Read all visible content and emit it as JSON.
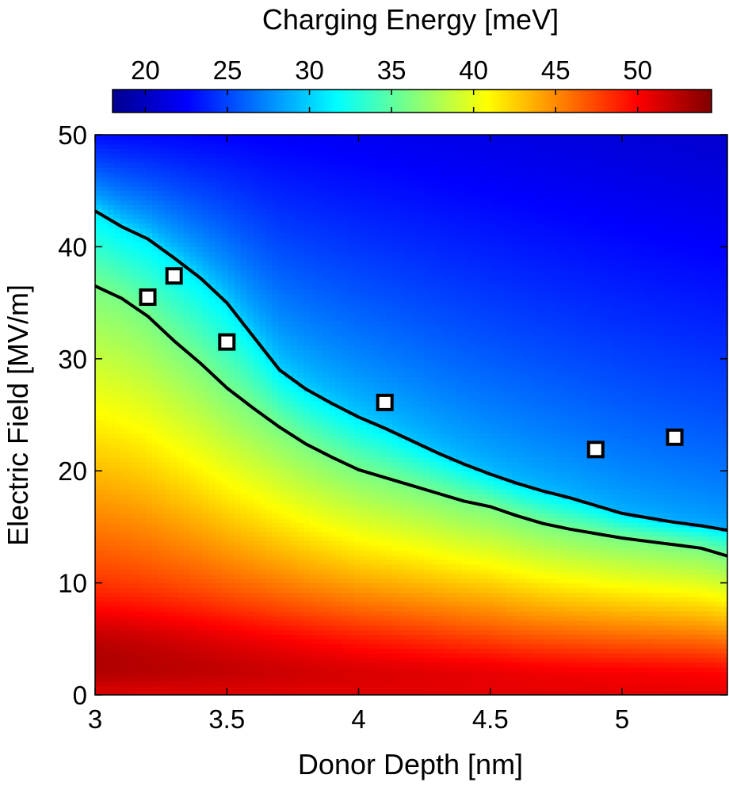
{
  "chart_data": {
    "type": "heatmap",
    "title": "",
    "xlabel": "Donor Depth [nm]",
    "ylabel": "Electric Field [MV/m]",
    "xlim": [
      3,
      5.4
    ],
    "ylim": [
      0,
      50
    ],
    "x_ticks": [
      3,
      3.5,
      4,
      4.5,
      5
    ],
    "x_tick_labels": [
      "3",
      "3.5",
      "4",
      "4.5",
      "5"
    ],
    "y_ticks": [
      0,
      10,
      20,
      30,
      40,
      50
    ],
    "y_tick_labels": [
      "0",
      "10",
      "20",
      "30",
      "40",
      "50"
    ],
    "colorbar": {
      "label": "Charging Energy [meV]",
      "range": [
        18,
        54.5
      ],
      "ticks": [
        20,
        25,
        30,
        35,
        40,
        45,
        50
      ],
      "tick_labels": [
        "20",
        "25",
        "30",
        "35",
        "40",
        "45",
        "50"
      ],
      "colormap": "jet",
      "placement": "top"
    },
    "contours": [
      {
        "level_description": "upper boundary",
        "x": [
          3.0,
          3.1,
          3.2,
          3.3,
          3.4,
          3.5,
          3.6,
          3.7,
          3.8,
          3.9,
          4.0,
          4.1,
          4.2,
          4.3,
          4.4,
          4.5,
          4.6,
          4.7,
          4.8,
          4.9,
          5.0,
          5.1,
          5.2,
          5.3,
          5.4
        ],
        "y": [
          43.2,
          41.8,
          40.7,
          39.0,
          37.2,
          35.0,
          32.0,
          29.0,
          27.3,
          26.0,
          24.8,
          23.8,
          22.7,
          21.6,
          20.6,
          19.7,
          18.9,
          18.2,
          17.6,
          16.9,
          16.2,
          15.8,
          15.4,
          15.1,
          14.7
        ]
      },
      {
        "level_description": "lower boundary",
        "x": [
          3.0,
          3.1,
          3.2,
          3.3,
          3.4,
          3.5,
          3.6,
          3.7,
          3.8,
          3.9,
          4.0,
          4.1,
          4.2,
          4.3,
          4.4,
          4.5,
          4.6,
          4.7,
          4.8,
          4.9,
          5.0,
          5.1,
          5.2,
          5.3,
          5.4
        ],
        "y": [
          36.5,
          35.4,
          33.8,
          31.6,
          29.6,
          27.4,
          25.6,
          23.9,
          22.4,
          21.2,
          20.1,
          19.4,
          18.7,
          18.0,
          17.3,
          16.8,
          16.0,
          15.3,
          14.8,
          14.4,
          14.0,
          13.7,
          13.4,
          13.1,
          12.4
        ]
      }
    ],
    "markers": {
      "style": "white-square",
      "points": [
        {
          "x": 3.2,
          "y": 35.5
        },
        {
          "x": 3.3,
          "y": 37.4
        },
        {
          "x": 3.5,
          "y": 31.5
        },
        {
          "x": 4.1,
          "y": 26.1
        },
        {
          "x": 4.9,
          "y": 21.9
        },
        {
          "x": 5.2,
          "y": 23.0
        }
      ]
    },
    "grid": false,
    "legend": "none"
  }
}
